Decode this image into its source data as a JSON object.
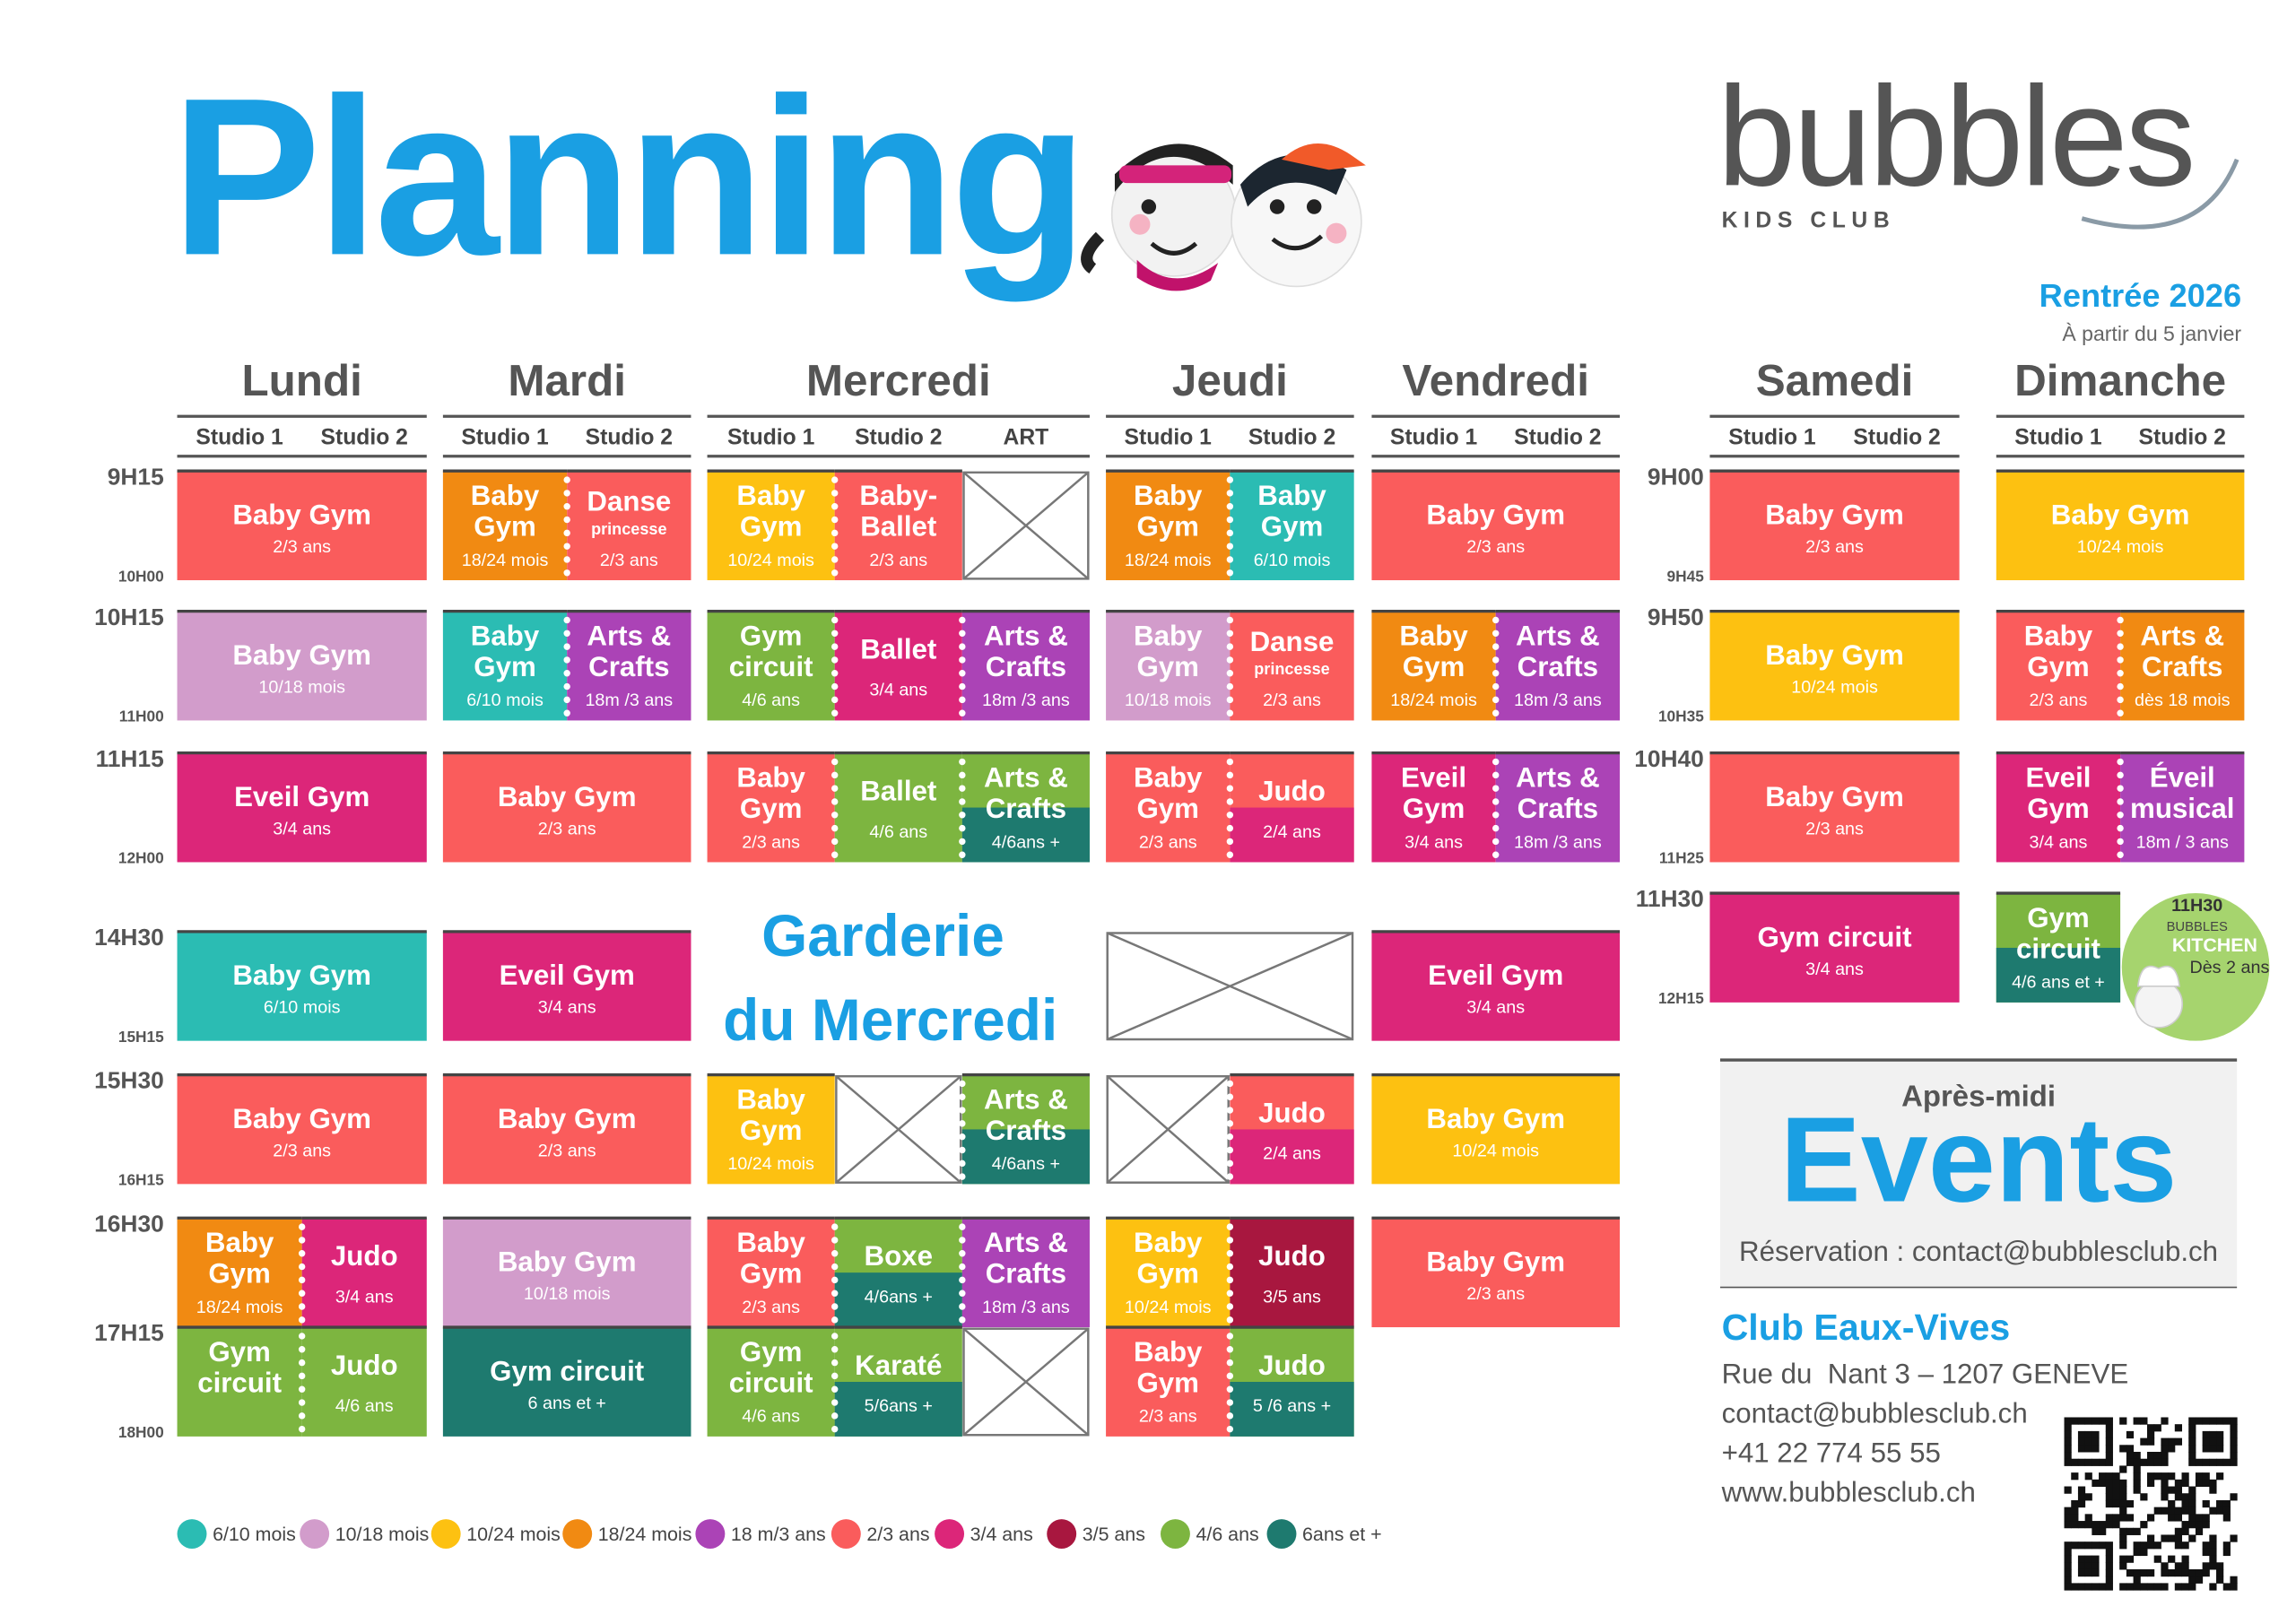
{
  "header": {
    "title": "Planning",
    "brand": "bubbles",
    "brand_sub": "KIDS CLUB",
    "season": "Rentrée 2026",
    "season_note": "À partir du 5 janvier"
  },
  "legend": [
    {
      "label": "6/10 mois",
      "color": "#2bbcb3"
    },
    {
      "label": "10/18 mois",
      "color": "#d29ccb"
    },
    {
      "label": "10/24 mois",
      "color": "#fdc111"
    },
    {
      "label": "18/24 mois",
      "color": "#f18a12"
    },
    {
      "label": "18 m/3 ans",
      "color": "#ab43b6"
    },
    {
      "label": "2/3 ans",
      "color": "#fa5c5c"
    },
    {
      "label": "3/4 ans",
      "color": "#dc2679"
    },
    {
      "label": "3/5 ans",
      "color": "#a8173f"
    },
    {
      "label": "4/6 ans",
      "color": "#7db540"
    },
    {
      "label": "6ans et +",
      "color": "#1e7a6f"
    }
  ],
  "weekday_times": [
    {
      "start": "9H15",
      "end": "10H00"
    },
    {
      "start": "10H15",
      "end": "11H00"
    },
    {
      "start": "11H15",
      "end": "12H00"
    },
    {
      "start": "14H30",
      "end": "15H15"
    },
    {
      "start": "15H30",
      "end": "16H15"
    },
    {
      "start": "16H30"
    },
    {
      "start": "17H15",
      "end": "18H00"
    }
  ],
  "weekend_times": [
    {
      "start": "9H00",
      "end": "9H45"
    },
    {
      "start": "9H50",
      "end": "10H35"
    },
    {
      "start": "10H40",
      "end": "11H25"
    },
    {
      "start": "11H30",
      "end": "12H15"
    }
  ],
  "days": [
    {
      "name": "Lundi",
      "studios": [
        "Studio 1",
        "Studio 2"
      ],
      "slots": [
        [
          {
            "title": [
              "Baby Gym"
            ],
            "sub": "2/3 ans",
            "colors": [
              5
            ]
          }
        ],
        [
          {
            "title": [
              "Baby Gym"
            ],
            "sub": "10/18 mois",
            "colors": [
              1
            ]
          }
        ],
        [
          {
            "title": [
              "Eveil Gym"
            ],
            "sub": "3/4 ans",
            "colors": [
              6
            ]
          }
        ],
        [
          {
            "title": [
              "Baby Gym"
            ],
            "sub": "6/10 mois",
            "colors": [
              0
            ]
          }
        ],
        [
          {
            "title": [
              "Baby Gym"
            ],
            "sub": "2/3 ans",
            "colors": [
              5
            ]
          }
        ],
        [
          {
            "title": [
              "Baby",
              "Gym"
            ],
            "sub": "18/24 mois",
            "colors": [
              3
            ]
          },
          {
            "title": [
              "Judo"
            ],
            "sub": "3/4 ans",
            "colors": [
              6
            ]
          }
        ],
        [
          {
            "title": [
              "Gym",
              "circuit"
            ],
            "colors": [
              8
            ]
          },
          {
            "title": [
              "Judo"
            ],
            "sub": "4/6 ans",
            "colors": [
              8
            ]
          }
        ]
      ]
    },
    {
      "name": "Mardi",
      "studios": [
        "Studio 1",
        "Studio 2"
      ],
      "slots": [
        [
          {
            "title": [
              "Baby",
              "Gym"
            ],
            "sub": "18/24 mois",
            "colors": [
              3
            ]
          },
          {
            "title": [
              "Danse"
            ],
            "note": "princesse",
            "sub": "2/3 ans",
            "colors": [
              5
            ]
          }
        ],
        [
          {
            "title": [
              "Baby",
              "Gym"
            ],
            "sub": "6/10 mois",
            "colors": [
              0
            ]
          },
          {
            "title": [
              "Arts &",
              "Crafts"
            ],
            "sub": "18m /3 ans",
            "colors": [
              4
            ]
          }
        ],
        [
          {
            "title": [
              "Baby Gym"
            ],
            "sub": "2/3 ans",
            "colors": [
              5
            ]
          }
        ],
        [
          {
            "title": [
              "Eveil Gym"
            ],
            "sub": "3/4 ans",
            "colors": [
              6
            ]
          }
        ],
        [
          {
            "title": [
              "Baby Gym"
            ],
            "sub": "2/3 ans",
            "colors": [
              5
            ]
          }
        ],
        [
          {
            "title": [
              "Baby Gym"
            ],
            "sub": "10/18 mois",
            "colors": [
              1
            ]
          }
        ],
        [
          {
            "title": [
              "Gym circuit"
            ],
            "sub": "6 ans et +",
            "colors": [
              9
            ]
          }
        ]
      ]
    },
    {
      "name": "Mercredi",
      "studios": [
        "Studio 1",
        "Studio 2",
        "ART"
      ],
      "slots": [
        [
          {
            "title": [
              "Baby",
              "Gym"
            ],
            "sub": "10/24 mois",
            "colors": [
              2
            ]
          },
          {
            "title": [
              "Baby-",
              "Ballet"
            ],
            "sub": "2/3 ans",
            "colors": [
              5
            ]
          },
          null
        ],
        [
          {
            "title": [
              "Gym",
              "circuit"
            ],
            "sub": "4/6 ans",
            "colors": [
              8
            ]
          },
          {
            "title": [
              "Ballet"
            ],
            "sub": "3/4 ans",
            "colors": [
              6
            ]
          },
          {
            "title": [
              "Arts &",
              "Crafts"
            ],
            "sub": "18m /3 ans",
            "colors": [
              4
            ]
          }
        ],
        [
          {
            "title": [
              "Baby",
              "Gym"
            ],
            "sub": "2/3 ans",
            "colors": [
              5
            ]
          },
          {
            "title": [
              "Ballet"
            ],
            "sub": "4/6 ans",
            "colors": [
              8
            ]
          },
          {
            "title": [
              "Arts &",
              "Crafts"
            ],
            "sub": "4/6ans +",
            "colors": [
              8,
              9
            ]
          }
        ],
        [],
        [
          {
            "title": [
              "Baby",
              "Gym"
            ],
            "sub": "10/24 mois",
            "colors": [
              2
            ]
          },
          null,
          {
            "title": [
              "Arts &",
              "Crafts"
            ],
            "sub": "4/6ans +",
            "colors": [
              8,
              9
            ]
          }
        ],
        [
          {
            "title": [
              "Baby",
              "Gym"
            ],
            "sub": "2/3 ans",
            "colors": [
              5
            ]
          },
          {
            "title": [
              "Boxe"
            ],
            "sub": "4/6ans +",
            "colors": [
              8,
              9
            ]
          },
          {
            "title": [
              "Arts &",
              "Crafts"
            ],
            "sub": "18m /3 ans",
            "colors": [
              4
            ]
          }
        ],
        [
          {
            "title": [
              "Gym",
              "circuit"
            ],
            "sub": "4/6 ans",
            "colors": [
              8
            ]
          },
          {
            "title": [
              "Karaté"
            ],
            "sub": "5/6ans +",
            "colors": [
              8,
              9
            ]
          },
          null
        ]
      ]
    },
    {
      "name": "Jeudi",
      "studios": [
        "Studio 1",
        "Studio 2"
      ],
      "slots": [
        [
          {
            "title": [
              "Baby",
              "Gym"
            ],
            "sub": "18/24 mois",
            "colors": [
              3
            ]
          },
          {
            "title": [
              "Baby",
              "Gym"
            ],
            "sub": "6/10 mois",
            "colors": [
              0
            ]
          }
        ],
        [
          {
            "title": [
              "Baby",
              "Gym"
            ],
            "sub": "10/18 mois",
            "colors": [
              1
            ]
          },
          {
            "title": [
              "Danse"
            ],
            "note": "princesse",
            "sub": "2/3 ans",
            "colors": [
              5
            ]
          }
        ],
        [
          {
            "title": [
              "Baby",
              "Gym"
            ],
            "sub": "2/3 ans",
            "colors": [
              5
            ]
          },
          {
            "title": [
              "Judo"
            ],
            "sub": "2/4 ans",
            "colors": [
              5,
              6
            ]
          }
        ],
        [
          null
        ],
        [
          null,
          {
            "title": [
              "Judo"
            ],
            "sub": "2/4 ans",
            "colors": [
              5,
              6
            ]
          }
        ],
        [
          {
            "title": [
              "Baby",
              "Gym"
            ],
            "sub": "10/24 mois",
            "colors": [
              2
            ]
          },
          {
            "title": [
              "Judo"
            ],
            "sub": "3/5 ans",
            "colors": [
              7
            ]
          }
        ],
        [
          {
            "title": [
              "Baby",
              "Gym"
            ],
            "sub": "2/3 ans",
            "colors": [
              5
            ]
          },
          {
            "title": [
              "Judo"
            ],
            "sub": "5 /6 ans +",
            "colors": [
              8,
              9
            ]
          }
        ]
      ]
    },
    {
      "name": "Vendredi",
      "studios": [
        "Studio 1",
        "Studio 2"
      ],
      "slots": [
        [
          {
            "title": [
              "Baby Gym"
            ],
            "sub": "2/3 ans",
            "colors": [
              5
            ]
          }
        ],
        [
          {
            "title": [
              "Baby",
              "Gym"
            ],
            "sub": "18/24 mois",
            "colors": [
              3
            ]
          },
          {
            "title": [
              "Arts &",
              "Crafts"
            ],
            "sub": "18m /3 ans",
            "colors": [
              4
            ]
          }
        ],
        [
          {
            "title": [
              "Eveil",
              "Gym"
            ],
            "sub": "3/4 ans",
            "colors": [
              6
            ]
          },
          {
            "title": [
              "Arts &",
              "Crafts"
            ],
            "sub": "18m /3 ans",
            "colors": [
              4
            ]
          }
        ],
        [
          {
            "title": [
              "Eveil Gym"
            ],
            "sub": "3/4 ans",
            "colors": [
              6
            ]
          }
        ],
        [
          {
            "title": [
              "Baby Gym"
            ],
            "sub": "10/24 mois",
            "colors": [
              2
            ]
          }
        ],
        [
          {
            "title": [
              "Baby Gym"
            ],
            "sub": "2/3 ans",
            "colors": [
              5
            ]
          }
        ]
      ]
    },
    {
      "name": "Samedi",
      "studios": [
        "Studio 1",
        "Studio 2"
      ],
      "slots": [
        [
          {
            "title": [
              "Baby Gym"
            ],
            "sub": "2/3 ans",
            "colors": [
              5
            ]
          }
        ],
        [
          {
            "title": [
              "Baby Gym"
            ],
            "sub": "10/24 mois",
            "colors": [
              2
            ]
          }
        ],
        [
          {
            "title": [
              "Baby Gym"
            ],
            "sub": "2/3 ans",
            "colors": [
              5
            ]
          }
        ],
        [
          {
            "title": [
              "Gym circuit"
            ],
            "sub": "3/4 ans",
            "colors": [
              6
            ]
          }
        ]
      ]
    },
    {
      "name": "Dimanche",
      "studios": [
        "Studio 1",
        "Studio 2"
      ],
      "slots": [
        [
          {
            "title": [
              "Baby Gym"
            ],
            "sub": "10/24 mois",
            "colors": [
              2
            ]
          }
        ],
        [
          {
            "title": [
              "Baby",
              "Gym"
            ],
            "sub": "2/3 ans",
            "colors": [
              5
            ]
          },
          {
            "title": [
              "Arts &",
              "Crafts"
            ],
            "sub": "dès 18 mois",
            "colors": [
              3
            ]
          }
        ],
        [
          {
            "title": [
              "Eveil",
              "Gym"
            ],
            "sub": "3/4 ans",
            "colors": [
              6
            ]
          },
          {
            "title": [
              "Éveil",
              "musical"
            ],
            "sub": "18m / 3 ans",
            "colors": [
              4
            ]
          }
        ],
        [
          {
            "title": [
              "Gym",
              "circuit"
            ],
            "sub": "4/6 ans et +",
            "colors": [
              8,
              9
            ]
          },
          null
        ]
      ]
    }
  ],
  "garderie": [
    "Garderie",
    "du Mercredi"
  ],
  "kitchen": {
    "time": "11H30",
    "brand": "BUBBLES",
    "name": "KITCHEN",
    "age": "Dès 2 ans"
  },
  "events": {
    "kicker": "Après-midi",
    "title": "Events",
    "booking": "Réservation : contact@bubblesclub.ch"
  },
  "club": {
    "name": "Club Eaux-Vives",
    "lines": [
      "Rue du  Nant 3 – 1207 GENEVE",
      "contact@bubblesclub.ch",
      "+41 22 774 55 55",
      "www.bubblesclub.ch"
    ]
  }
}
